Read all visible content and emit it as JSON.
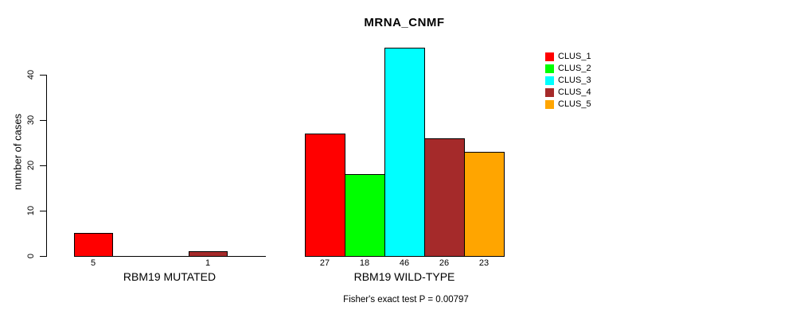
{
  "chart_data": {
    "type": "bar",
    "title": "MRNA_CNMF",
    "ylabel": "number of cases",
    "xlabel": "",
    "ylim": [
      0,
      46
    ],
    "yticks": [
      0,
      10,
      20,
      30,
      40
    ],
    "grid": false,
    "legend_position": "top-right",
    "series": [
      {
        "name": "CLUS_1",
        "color": "#FF0000"
      },
      {
        "name": "CLUS_2",
        "color": "#00FF00"
      },
      {
        "name": "CLUS_3",
        "color": "#00FFFF"
      },
      {
        "name": "CLUS_4",
        "color": "#A52A2A"
      },
      {
        "name": "CLUS_5",
        "color": "#FFA500"
      }
    ],
    "groups": [
      {
        "label": "RBM19 MUTATED",
        "values": [
          5,
          0,
          0,
          1,
          0
        ]
      },
      {
        "label": "RBM19 WILD-TYPE",
        "values": [
          27,
          18,
          46,
          26,
          23
        ]
      }
    ],
    "bar_value_labels": "shown under each nonzero bar",
    "annotation": "Fisher's exact test P = 0.00797"
  }
}
